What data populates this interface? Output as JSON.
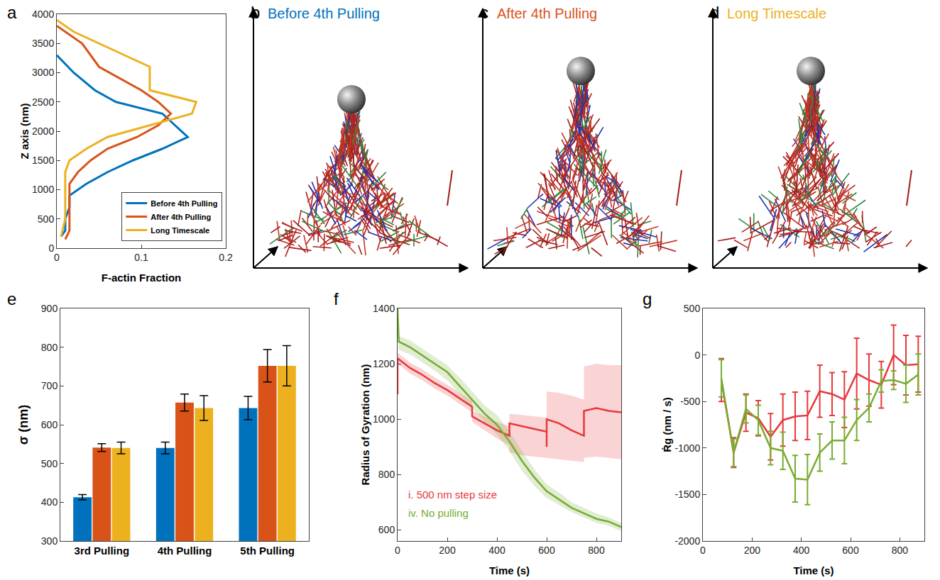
{
  "chart_data": [
    {
      "panel": "a",
      "type": "line",
      "xlabel": "F-actin Fraction",
      "ylabel": "Z axis (nm)",
      "xlim": [
        0,
        0.2
      ],
      "xticks": [
        0,
        0.1,
        0.2
      ],
      "ylim": [
        0,
        4000
      ],
      "yticks": [
        0,
        500,
        1000,
        1500,
        2000,
        2500,
        3000,
        3500,
        4000
      ],
      "grid": false,
      "legend": "lower right",
      "series": [
        {
          "name": "Before 4th Pulling",
          "color": "#0072BD",
          "x": [
            0,
            0.02,
            0.045,
            0.07,
            0.125,
            0.14,
            0.155,
            0.125,
            0.09,
            0.06,
            0.035,
            0.015,
            0.015,
            0.01,
            0.01,
            0.005
          ],
          "y": [
            3300,
            3000,
            2700,
            2500,
            2300,
            2100,
            1900,
            1700,
            1500,
            1300,
            1100,
            900,
            700,
            500,
            300,
            200
          ]
        },
        {
          "name": "After 4th Pulling",
          "color": "#D95319",
          "x": [
            0,
            0.01,
            0.03,
            0.05,
            0.075,
            0.1,
            0.12,
            0.135,
            0.12,
            0.095,
            0.06,
            0.04,
            0.025,
            0.015,
            0.015,
            0.015,
            0.015,
            0.015,
            0.01
          ],
          "y": [
            3800,
            3700,
            3500,
            3100,
            2900,
            2700,
            2500,
            2300,
            2100,
            1900,
            1700,
            1500,
            1300,
            1100,
            900,
            700,
            500,
            300,
            150
          ]
        },
        {
          "name": "Long Timescale",
          "color": "#EDB120",
          "x": [
            0,
            0.02,
            0.08,
            0.11,
            0.11,
            0.11,
            0.165,
            0.16,
            0.11,
            0.06,
            0.035,
            0.015,
            0.01,
            0.01,
            0.01,
            0.005
          ],
          "y": [
            3900,
            3700,
            3300,
            3100,
            2900,
            2700,
            2500,
            2300,
            2100,
            1900,
            1700,
            1500,
            1300,
            900,
            500,
            200
          ]
        }
      ]
    },
    {
      "panel": "e",
      "type": "bar",
      "ylabel": "σ (nm)",
      "categories": [
        "3rd Pulling",
        "4th Pulling",
        "5th Pulling"
      ],
      "ylim": [
        300,
        900
      ],
      "yticks": [
        300,
        400,
        500,
        600,
        700,
        800,
        900
      ],
      "grid": false,
      "series": [
        {
          "color": "#0072BD",
          "values": [
            413,
            540,
            643
          ],
          "errors": [
            7,
            15,
            30
          ]
        },
        {
          "color": "#D95319",
          "values": [
            541,
            657,
            752
          ],
          "errors": [
            10,
            22,
            42
          ]
        },
        {
          "color": "#EDB120",
          "values": [
            540,
            643,
            752
          ],
          "errors": [
            15,
            32,
            52
          ]
        }
      ]
    },
    {
      "panel": "f",
      "type": "line",
      "xlabel": "Time (s)",
      "ylabel": "Radius of Gyration (nm)",
      "xlim": [
        0,
        900
      ],
      "xticks": [
        0,
        200,
        400,
        600,
        800
      ],
      "ylim": [
        560,
        1400
      ],
      "yticks": [
        600,
        800,
        1000,
        1200,
        1400
      ],
      "grid": false,
      "series": [
        {
          "name": "i. 500 nm step size",
          "color": "#E8383B",
          "x": [
            0,
            0,
            50,
            100,
            150,
            200,
            250,
            300,
            300,
            350,
            400,
            450,
            450,
            500,
            550,
            600,
            600,
            600,
            650,
            700,
            750,
            750,
            800,
            850,
            900
          ],
          "y": [
            1090,
            1220,
            1185,
            1160,
            1130,
            1105,
            1075,
            1045,
            1010,
            985,
            960,
            940,
            985,
            975,
            965,
            955,
            900,
            1000,
            985,
            960,
            940,
            1030,
            1040,
            1030,
            1025
          ],
          "band_lower": [
            1070,
            1200,
            1165,
            1140,
            1110,
            1085,
            1055,
            1025,
            990,
            960,
            930,
            905,
            880,
            870,
            865,
            860,
            820,
            860,
            855,
            850,
            845,
            860,
            865,
            860,
            855
          ],
          "band_upper": [
            1110,
            1240,
            1205,
            1180,
            1150,
            1125,
            1095,
            1065,
            1030,
            1010,
            990,
            975,
            1020,
            1015,
            1010,
            1005,
            985,
            1100,
            1095,
            1085,
            1070,
            1190,
            1200,
            1195,
            1195
          ]
        },
        {
          "name": "iv. No pulling",
          "color": "#77AC30",
          "x": [
            0,
            5,
            50,
            100,
            150,
            200,
            250,
            300,
            350,
            400,
            450,
            500,
            550,
            600,
            650,
            700,
            750,
            800,
            850,
            900
          ],
          "y": [
            1400,
            1280,
            1260,
            1230,
            1200,
            1170,
            1120,
            1070,
            1020,
            980,
            920,
            850,
            790,
            740,
            710,
            680,
            660,
            640,
            630,
            610
          ],
          "band_lower": [
            1380,
            1250,
            1235,
            1205,
            1175,
            1140,
            1090,
            1040,
            990,
            945,
            885,
            815,
            760,
            715,
            690,
            665,
            645,
            625,
            615,
            595
          ],
          "band_upper": [
            1400,
            1300,
            1285,
            1255,
            1225,
            1195,
            1150,
            1100,
            1050,
            1015,
            955,
            885,
            820,
            765,
            735,
            700,
            680,
            660,
            645,
            625
          ]
        }
      ]
    },
    {
      "panel": "g",
      "type": "line",
      "xlabel": "Time (s)",
      "ylabel": "Ṙg (nm / s)",
      "xlim": [
        0,
        900
      ],
      "xticks": [
        0,
        200,
        400,
        600,
        800
      ],
      "ylim": [
        -2000,
        500
      ],
      "yticks": [
        -2000,
        -1500,
        -1000,
        -500,
        0,
        500
      ],
      "grid": false,
      "series": [
        {
          "color": "#E8383B",
          "x": [
            75,
            125,
            175,
            225,
            275,
            325,
            375,
            425,
            475,
            525,
            575,
            625,
            675,
            725,
            775,
            825,
            875
          ],
          "y": [
            -270,
            -1050,
            -620,
            -680,
            -880,
            -700,
            -660,
            -650,
            -390,
            -420,
            -480,
            -200,
            -270,
            -320,
            0,
            -110,
            -100
          ],
          "errors": [
            230,
            160,
            200,
            190,
            250,
            280,
            260,
            260,
            280,
            230,
            300,
            380,
            280,
            250,
            320,
            320,
            300
          ]
        },
        {
          "color": "#77AC30",
          "x": [
            75,
            125,
            175,
            225,
            275,
            325,
            375,
            425,
            475,
            525,
            575,
            625,
            675,
            725,
            775,
            825,
            875
          ],
          "y": [
            -250,
            -1050,
            -580,
            -700,
            -1000,
            -1030,
            -1330,
            -1340,
            -1050,
            -920,
            -920,
            -700,
            -570,
            -280,
            -270,
            -310,
            -210
          ],
          "errors": [
            200,
            150,
            150,
            160,
            180,
            200,
            250,
            270,
            200,
            200,
            250,
            220,
            150,
            120,
            100,
            200,
            220
          ]
        }
      ]
    }
  ],
  "renderings": [
    {
      "panel": "b",
      "title": "Before 4th Pulling",
      "color": "#0072BD"
    },
    {
      "panel": "c",
      "title": "After 4th Pulling",
      "color": "#D95319"
    },
    {
      "panel": "d",
      "title": "Long Timescale",
      "color": "#EDB120"
    }
  ]
}
